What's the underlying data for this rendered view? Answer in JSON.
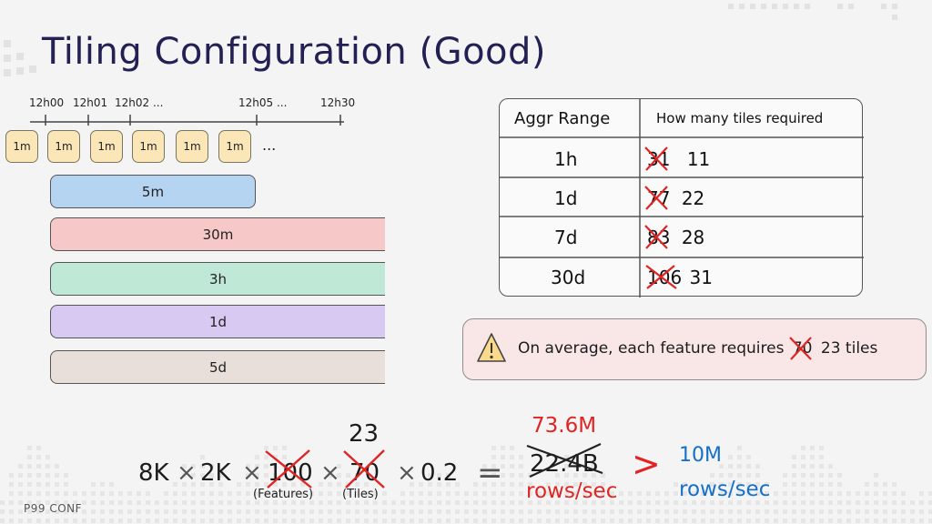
{
  "slide": {
    "title": "Tiling Configuration (Good)",
    "footer": "P99 CONF"
  },
  "timeline": {
    "ticks": [
      "12h00",
      "12h01",
      "12h02 ...",
      "12h05 ...",
      "12h30"
    ],
    "mini_tiles": [
      "1m",
      "1m",
      "1m",
      "1m",
      "1m",
      "1m"
    ],
    "ellipsis": "...",
    "bars": [
      {
        "label": "5m",
        "color": "#b4d4f2"
      },
      {
        "label": "30m",
        "color": "#f6c8c8"
      },
      {
        "label": "3h",
        "color": "#bfe8d6"
      },
      {
        "label": "1d",
        "color": "#d7c9f1"
      },
      {
        "label": "5d",
        "color": "#e8dfdb"
      }
    ]
  },
  "table": {
    "headers": [
      "Aggr Range",
      "How many tiles required"
    ],
    "rows": [
      {
        "range": "1h",
        "old": "31",
        "new": "11"
      },
      {
        "range": "1d",
        "old": "77",
        "new": "22"
      },
      {
        "range": "7d",
        "old": "83",
        "new": "28"
      },
      {
        "range": "30d",
        "old": "106",
        "new": "31"
      }
    ]
  },
  "note": {
    "text_before": "On average, each feature requires",
    "old_value": "70",
    "text_after": "23 tiles"
  },
  "formula": {
    "part1": "8K",
    "times1": "×",
    "part2": "2K",
    "times2": "×",
    "features_old": "100",
    "features_caption": "(Features)",
    "times3": "×",
    "tiles_old": "70",
    "tiles_new": "23",
    "tiles_caption": "(Tiles)",
    "times4": "×",
    "factor": "0.2",
    "equals": "=",
    "result_old": "22.4B",
    "result_new": "73.6M",
    "result_unit": "rows/sec",
    "greater": ">",
    "target_value": "10M",
    "target_unit": "rows/sec"
  }
}
